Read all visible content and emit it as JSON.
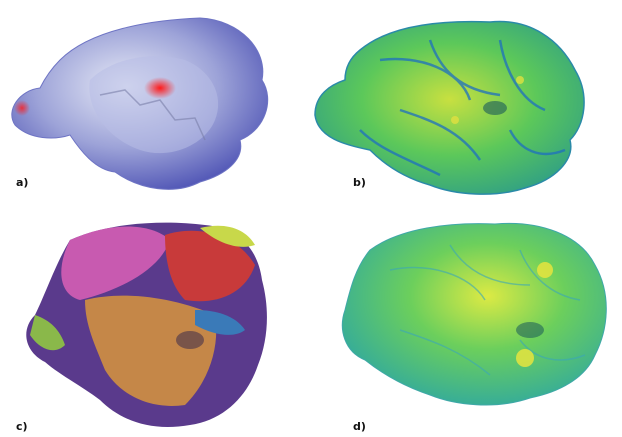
{
  "panels": [
    {
      "label": "a)",
      "surface": "dnorm",
      "colors": [
        "#5a5fc0",
        "#e8ecf6",
        "#e02020"
      ]
    },
    {
      "label": "b)",
      "surface": "shape-index",
      "colors": [
        "#5bc85a",
        "#2fb4c8",
        "#1b5ea8",
        "#d8e040"
      ]
    },
    {
      "label": "c)",
      "surface": "fragment-patches",
      "colors": [
        "#c85ab0",
        "#d09040",
        "#5a3a8c",
        "#c83a3a",
        "#c8d84a"
      ]
    },
    {
      "label": "d)",
      "surface": "curvedness",
      "colors": [
        "#5bc85a",
        "#3fb8a8",
        "#e0e040"
      ]
    }
  ]
}
